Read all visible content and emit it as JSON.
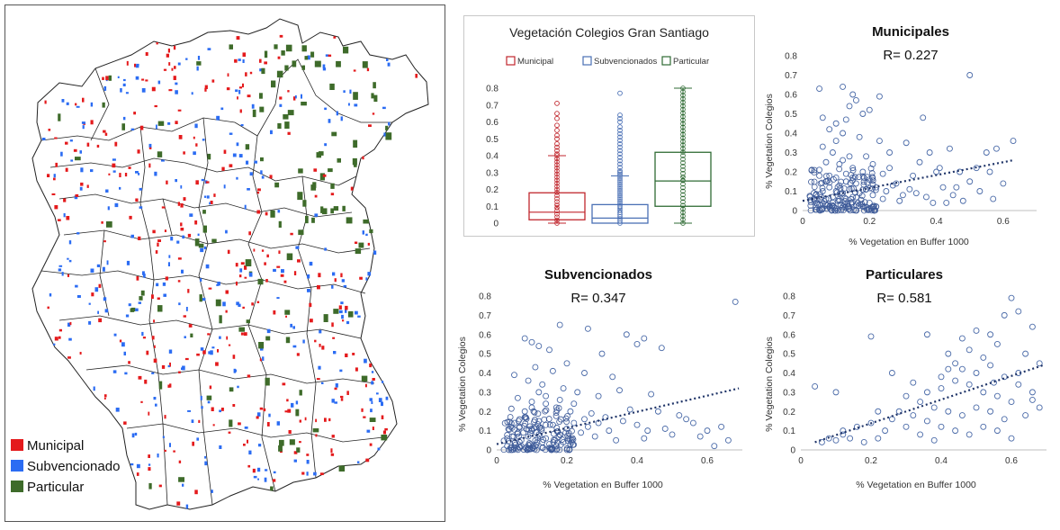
{
  "map": {
    "legend": [
      {
        "label": "Municipal",
        "color": "#e41a1c"
      },
      {
        "label": "Subvencionado",
        "color": "#2b6cf3"
      },
      {
        "label": "Particular",
        "color": "#3e6b2a"
      }
    ]
  },
  "chart_data": [
    {
      "type": "box",
      "title": "Vegetación Colegios Gran Santiago",
      "legend": [
        "Municipal",
        "Subvencionados",
        "Particular"
      ],
      "colors": [
        "#c0262d",
        "#4a70b5",
        "#2f6b34"
      ],
      "ylim": [
        0,
        0.8
      ],
      "yticks": [
        "0",
        "0.1",
        "0.2",
        "0.3",
        "0.4",
        "0.5",
        "0.6",
        "0.7",
        "0.8"
      ],
      "boxes": [
        {
          "name": "Municipal",
          "min": 0,
          "q1": 0.02,
          "median": 0.065,
          "q3": 0.18,
          "max": 0.4,
          "mean": 0.1,
          "outliers": [
            0.41,
            0.43,
            0.45,
            0.47,
            0.5,
            0.52,
            0.55,
            0.58,
            0.62,
            0.65,
            0.71
          ]
        },
        {
          "name": "Subvencionados",
          "min": 0,
          "q1": 0.0,
          "median": 0.03,
          "q3": 0.11,
          "max": 0.28,
          "mean": 0.08,
          "outliers": [
            0.29,
            0.3,
            0.31,
            0.33,
            0.35,
            0.37,
            0.39,
            0.41,
            0.43,
            0.45,
            0.47,
            0.49,
            0.51,
            0.53,
            0.55,
            0.57,
            0.6,
            0.62,
            0.64,
            0.77
          ]
        },
        {
          "name": "Particular",
          "min": 0,
          "q1": 0.1,
          "median": 0.25,
          "q3": 0.42,
          "max": 0.8,
          "mean": 0.27,
          "outliers": []
        }
      ]
    },
    {
      "type": "scatter",
      "title": "Municipales",
      "annotation": "R= 0.227",
      "xlabel": "% Vegetation en Buffer 1000",
      "ylabel": "% Vegetation Colegios",
      "xlim": [
        0,
        0.7
      ],
      "ylim": [
        0,
        0.8
      ],
      "xticks": [
        "0",
        "0.2",
        "0.4",
        "0.6"
      ],
      "yticks": [
        "0",
        "0.1",
        "0.2",
        "0.3",
        "0.4",
        "0.5",
        "0.6",
        "0.7",
        "0.8"
      ],
      "trend": [
        [
          0.0,
          0.05
        ],
        [
          0.63,
          0.26
        ]
      ],
      "points": [
        [
          0.05,
          0.63
        ],
        [
          0.12,
          0.64
        ],
        [
          0.15,
          0.6
        ],
        [
          0.16,
          0.57
        ],
        [
          0.14,
          0.54
        ],
        [
          0.23,
          0.59
        ],
        [
          0.5,
          0.7
        ],
        [
          0.06,
          0.48
        ],
        [
          0.1,
          0.45
        ],
        [
          0.13,
          0.47
        ],
        [
          0.18,
          0.5
        ],
        [
          0.2,
          0.52
        ],
        [
          0.08,
          0.42
        ],
        [
          0.12,
          0.4
        ],
        [
          0.17,
          0.38
        ],
        [
          0.1,
          0.36
        ],
        [
          0.06,
          0.33
        ],
        [
          0.09,
          0.3
        ],
        [
          0.14,
          0.28
        ],
        [
          0.12,
          0.26
        ],
        [
          0.07,
          0.25
        ],
        [
          0.11,
          0.24
        ],
        [
          0.15,
          0.22
        ],
        [
          0.18,
          0.2
        ],
        [
          0.05,
          0.21
        ],
        [
          0.08,
          0.18
        ],
        [
          0.1,
          0.17
        ],
        [
          0.13,
          0.15
        ],
        [
          0.16,
          0.14
        ],
        [
          0.2,
          0.16
        ],
        [
          0.22,
          0.12
        ],
        [
          0.25,
          0.1
        ],
        [
          0.28,
          0.14
        ],
        [
          0.3,
          0.08
        ],
        [
          0.33,
          0.18
        ],
        [
          0.35,
          0.25
        ],
        [
          0.38,
          0.3
        ],
        [
          0.42,
          0.12
        ],
        [
          0.45,
          0.08
        ],
        [
          0.48,
          0.05
        ],
        [
          0.36,
          0.48
        ],
        [
          0.31,
          0.35
        ],
        [
          0.26,
          0.3
        ],
        [
          0.4,
          0.2
        ],
        [
          0.44,
          0.32
        ],
        [
          0.47,
          0.2
        ],
        [
          0.52,
          0.22
        ],
        [
          0.55,
          0.3
        ],
        [
          0.58,
          0.32
        ],
        [
          0.6,
          0.14
        ],
        [
          0.63,
          0.36
        ],
        [
          0.56,
          0.2
        ],
        [
          0.5,
          0.15
        ],
        [
          0.41,
          0.22
        ],
        [
          0.34,
          0.09
        ],
        [
          0.29,
          0.05
        ],
        [
          0.24,
          0.06
        ],
        [
          0.21,
          0.08
        ],
        [
          0.19,
          0.11
        ],
        [
          0.17,
          0.09
        ],
        [
          0.15,
          0.07
        ],
        [
          0.13,
          0.06
        ],
        [
          0.11,
          0.05
        ],
        [
          0.09,
          0.04
        ],
        [
          0.07,
          0.06
        ],
        [
          0.05,
          0.03
        ],
        [
          0.04,
          0.08
        ],
        [
          0.06,
          0.1
        ],
        [
          0.08,
          0.12
        ],
        [
          0.1,
          0.1
        ],
        [
          0.12,
          0.09
        ],
        [
          0.14,
          0.11
        ],
        [
          0.16,
          0.03
        ],
        [
          0.18,
          0.02
        ],
        [
          0.2,
          0.04
        ],
        [
          0.22,
          0.02
        ],
        [
          0.06,
          0.01
        ],
        [
          0.08,
          0.02
        ],
        [
          0.1,
          0.01
        ],
        [
          0.12,
          0.02
        ],
        [
          0.14,
          0.01
        ],
        [
          0.04,
          0.02
        ],
        [
          0.09,
          0.07
        ],
        [
          0.11,
          0.13
        ],
        [
          0.13,
          0.19
        ],
        [
          0.07,
          0.15
        ],
        [
          0.15,
          0.17
        ],
        [
          0.19,
          0.28
        ],
        [
          0.21,
          0.24
        ],
        [
          0.24,
          0.19
        ],
        [
          0.27,
          0.13
        ],
        [
          0.32,
          0.11
        ],
        [
          0.37,
          0.07
        ],
        [
          0.39,
          0.04
        ],
        [
          0.46,
          0.12
        ],
        [
          0.53,
          0.1
        ],
        [
          0.43,
          0.04
        ],
        [
          0.57,
          0.06
        ],
        [
          0.26,
          0.22
        ],
        [
          0.23,
          0.36
        ]
      ]
    },
    {
      "type": "scatter",
      "title": "Subvencionados",
      "annotation": "R= 0.347",
      "xlabel": "% Vegetation en Buffer 1000",
      "ylabel": "% Vegetation Colegios",
      "xlim": [
        0,
        0.7
      ],
      "ylim": [
        0,
        0.8
      ],
      "xticks": [
        "0",
        "0.2",
        "0.4",
        "0.6"
      ],
      "yticks": [
        "0",
        "0.1",
        "0.2",
        "0.3",
        "0.4",
        "0.5",
        "0.6",
        "0.7",
        "0.8"
      ],
      "trend": [
        [
          0.0,
          0.03
        ],
        [
          0.69,
          0.32
        ]
      ],
      "points": [
        [
          0.68,
          0.77
        ],
        [
          0.18,
          0.65
        ],
        [
          0.26,
          0.63
        ],
        [
          0.37,
          0.6
        ],
        [
          0.42,
          0.58
        ],
        [
          0.08,
          0.58
        ],
        [
          0.1,
          0.56
        ],
        [
          0.12,
          0.54
        ],
        [
          0.15,
          0.52
        ],
        [
          0.3,
          0.5
        ],
        [
          0.4,
          0.55
        ],
        [
          0.47,
          0.53
        ],
        [
          0.2,
          0.45
        ],
        [
          0.11,
          0.43
        ],
        [
          0.16,
          0.41
        ],
        [
          0.25,
          0.4
        ],
        [
          0.33,
          0.38
        ],
        [
          0.05,
          0.39
        ],
        [
          0.09,
          0.36
        ],
        [
          0.13,
          0.34
        ],
        [
          0.19,
          0.32
        ],
        [
          0.23,
          0.3
        ],
        [
          0.29,
          0.28
        ],
        [
          0.35,
          0.31
        ],
        [
          0.44,
          0.29
        ],
        [
          0.06,
          0.27
        ],
        [
          0.1,
          0.25
        ],
        [
          0.14,
          0.24
        ],
        [
          0.17,
          0.22
        ],
        [
          0.21,
          0.2
        ],
        [
          0.27,
          0.19
        ],
        [
          0.31,
          0.17
        ],
        [
          0.38,
          0.21
        ],
        [
          0.46,
          0.2
        ],
        [
          0.52,
          0.18
        ],
        [
          0.56,
          0.14
        ],
        [
          0.6,
          0.1
        ],
        [
          0.64,
          0.12
        ],
        [
          0.5,
          0.08
        ],
        [
          0.42,
          0.06
        ],
        [
          0.34,
          0.05
        ],
        [
          0.28,
          0.07
        ],
        [
          0.24,
          0.09
        ],
        [
          0.2,
          0.11
        ],
        [
          0.16,
          0.13
        ],
        [
          0.12,
          0.15
        ],
        [
          0.08,
          0.17
        ],
        [
          0.04,
          0.12
        ],
        [
          0.06,
          0.09
        ],
        [
          0.09,
          0.07
        ],
        [
          0.11,
          0.05
        ],
        [
          0.13,
          0.04
        ],
        [
          0.15,
          0.03
        ],
        [
          0.17,
          0.02
        ],
        [
          0.19,
          0.04
        ],
        [
          0.21,
          0.03
        ],
        [
          0.03,
          0.02
        ],
        [
          0.05,
          0.01
        ],
        [
          0.07,
          0.02
        ],
        [
          0.09,
          0.01
        ],
        [
          0.11,
          0.02
        ],
        [
          0.13,
          0.01
        ],
        [
          0.15,
          0.01
        ],
        [
          0.07,
          0.05
        ],
        [
          0.1,
          0.1
        ],
        [
          0.12,
          0.08
        ],
        [
          0.14,
          0.06
        ],
        [
          0.18,
          0.08
        ],
        [
          0.22,
          0.14
        ],
        [
          0.26,
          0.12
        ],
        [
          0.32,
          0.1
        ],
        [
          0.36,
          0.15
        ],
        [
          0.4,
          0.13
        ],
        [
          0.48,
          0.11
        ],
        [
          0.54,
          0.16
        ],
        [
          0.58,
          0.07
        ],
        [
          0.66,
          0.05
        ],
        [
          0.03,
          0.06
        ],
        [
          0.05,
          0.14
        ],
        [
          0.08,
          0.2
        ],
        [
          0.1,
          0.22
        ],
        [
          0.12,
          0.3
        ],
        [
          0.14,
          0.28
        ],
        [
          0.18,
          0.26
        ],
        [
          0.22,
          0.24
        ],
        [
          0.25,
          0.16
        ],
        [
          0.29,
          0.14
        ],
        [
          0.43,
          0.1
        ],
        [
          0.62,
          0.02
        ]
      ]
    },
    {
      "type": "scatter",
      "title": "Particulares",
      "annotation": "R= 0.581",
      "xlabel": "% Vegetation en Buffer 1000",
      "ylabel": "% Vegetation Colegios",
      "xlim": [
        0,
        0.7
      ],
      "ylim": [
        0,
        0.8
      ],
      "xticks": [
        "0",
        "0.2",
        "0.4",
        "0.6"
      ],
      "yticks": [
        "0",
        "0.1",
        "0.2",
        "0.3",
        "0.4",
        "0.5",
        "0.6",
        "0.7",
        "0.8"
      ],
      "trend": [
        [
          0.04,
          0.04
        ],
        [
          0.69,
          0.44
        ]
      ],
      "points": [
        [
          0.6,
          0.79
        ],
        [
          0.62,
          0.72
        ],
        [
          0.58,
          0.7
        ],
        [
          0.36,
          0.6
        ],
        [
          0.5,
          0.62
        ],
        [
          0.66,
          0.64
        ],
        [
          0.46,
          0.58
        ],
        [
          0.54,
          0.6
        ],
        [
          0.42,
          0.5
        ],
        [
          0.48,
          0.52
        ],
        [
          0.52,
          0.48
        ],
        [
          0.56,
          0.55
        ],
        [
          0.64,
          0.5
        ],
        [
          0.44,
          0.45
        ],
        [
          0.46,
          0.42
        ],
        [
          0.5,
          0.4
        ],
        [
          0.54,
          0.44
        ],
        [
          0.4,
          0.38
        ],
        [
          0.44,
          0.36
        ],
        [
          0.48,
          0.34
        ],
        [
          0.58,
          0.38
        ],
        [
          0.62,
          0.4
        ],
        [
          0.68,
          0.45
        ],
        [
          0.36,
          0.3
        ],
        [
          0.4,
          0.32
        ],
        [
          0.52,
          0.3
        ],
        [
          0.56,
          0.28
        ],
        [
          0.6,
          0.25
        ],
        [
          0.66,
          0.3
        ],
        [
          0.3,
          0.28
        ],
        [
          0.34,
          0.25
        ],
        [
          0.38,
          0.22
        ],
        [
          0.42,
          0.2
        ],
        [
          0.46,
          0.18
        ],
        [
          0.5,
          0.22
        ],
        [
          0.54,
          0.2
        ],
        [
          0.58,
          0.16
        ],
        [
          0.64,
          0.18
        ],
        [
          0.68,
          0.22
        ],
        [
          0.28,
          0.2
        ],
        [
          0.32,
          0.18
        ],
        [
          0.36,
          0.15
        ],
        [
          0.4,
          0.12
        ],
        [
          0.44,
          0.1
        ],
        [
          0.48,
          0.08
        ],
        [
          0.52,
          0.12
        ],
        [
          0.56,
          0.1
        ],
        [
          0.6,
          0.06
        ],
        [
          0.22,
          0.2
        ],
        [
          0.26,
          0.16
        ],
        [
          0.3,
          0.12
        ],
        [
          0.34,
          0.08
        ],
        [
          0.38,
          0.05
        ],
        [
          0.24,
          0.1
        ],
        [
          0.2,
          0.14
        ],
        [
          0.16,
          0.12
        ],
        [
          0.12,
          0.1
        ],
        [
          0.1,
          0.05
        ],
        [
          0.14,
          0.06
        ],
        [
          0.18,
          0.04
        ],
        [
          0.22,
          0.06
        ],
        [
          0.04,
          0.33
        ],
        [
          0.1,
          0.3
        ],
        [
          0.2,
          0.59
        ],
        [
          0.12,
          0.08
        ],
        [
          0.08,
          0.06
        ],
        [
          0.06,
          0.04
        ],
        [
          0.26,
          0.4
        ],
        [
          0.32,
          0.35
        ],
        [
          0.42,
          0.42
        ],
        [
          0.62,
          0.34
        ],
        [
          0.66,
          0.26
        ],
        [
          0.55,
          0.35
        ]
      ]
    }
  ]
}
